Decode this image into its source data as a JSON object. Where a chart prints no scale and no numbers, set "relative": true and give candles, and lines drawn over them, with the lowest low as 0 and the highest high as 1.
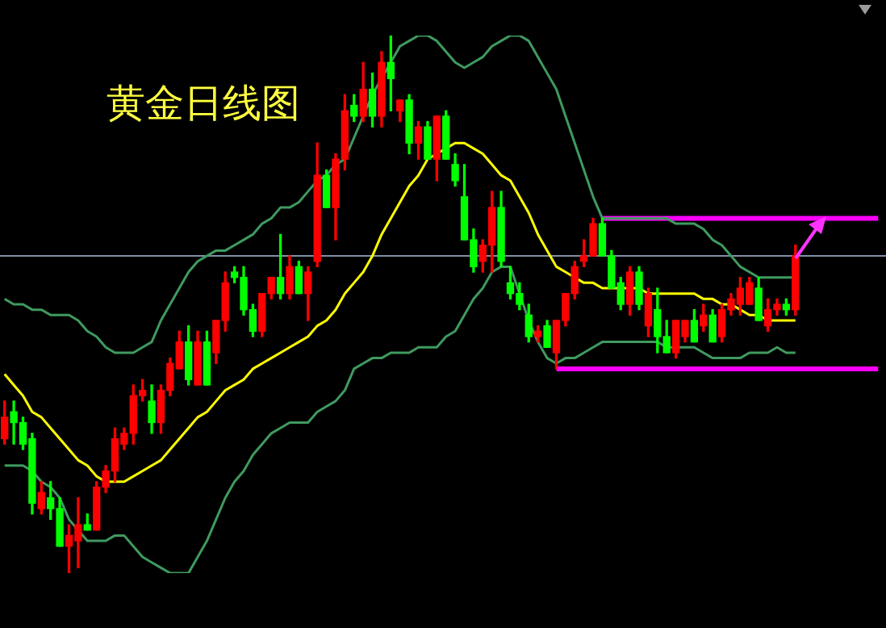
{
  "chart_data": {
    "type": "candlestick",
    "title": "黄金日线图",
    "relative": true,
    "legend": false,
    "categories": [
      null,
      null,
      null,
      null,
      null,
      null,
      null,
      null,
      null,
      null,
      null,
      null,
      null,
      null,
      null,
      null,
      null,
      null,
      null,
      null,
      null,
      null,
      null,
      null,
      null,
      null,
      null,
      null,
      null,
      null,
      null,
      null,
      null,
      null,
      null,
      null,
      null,
      null,
      null,
      null,
      null,
      null,
      null,
      null,
      null,
      null,
      null,
      null,
      null,
      null,
      null,
      null,
      null,
      null,
      null,
      null,
      null,
      null,
      null,
      null,
      null,
      null,
      null,
      null,
      null,
      null,
      null,
      null,
      null,
      null,
      null,
      null,
      null,
      null,
      null,
      null,
      null,
      null,
      null,
      null,
      null,
      null,
      null,
      null,
      null,
      null,
      null,
      null,
      null,
      null,
      null,
      null,
      null,
      null,
      null,
      null
    ],
    "ohlc": [
      [
        0.25,
        0.32,
        0.24,
        0.29
      ],
      [
        0.3,
        0.32,
        0.24,
        0.28
      ],
      [
        0.28,
        0.29,
        0.23,
        0.24
      ],
      [
        0.25,
        0.26,
        0.11,
        0.13
      ],
      [
        0.12,
        0.17,
        0.11,
        0.15
      ],
      [
        0.14,
        0.17,
        0.1,
        0.12
      ],
      [
        0.12,
        0.14,
        0.05,
        0.05
      ],
      [
        0.05,
        0.09,
        0,
        0.07
      ],
      [
        0.06,
        0.14,
        0.01,
        0.09
      ],
      [
        0.09,
        0.11,
        0.08,
        0.08
      ],
      [
        0.08,
        0.17,
        0.08,
        0.16
      ],
      [
        0.16,
        0.2,
        0.15,
        0.19
      ],
      [
        0.19,
        0.27,
        0.17,
        0.25
      ],
      [
        0.24,
        0.27,
        0.23,
        0.26
      ],
      [
        0.26,
        0.35,
        0.24,
        0.33
      ],
      [
        0.33,
        0.36,
        0.32,
        0.34
      ],
      [
        0.32,
        0.35,
        0.26,
        0.28
      ],
      [
        0.28,
        0.35,
        0.26,
        0.34
      ],
      [
        0.34,
        0.4,
        0.33,
        0.39
      ],
      [
        0.38,
        0.45,
        0.38,
        0.43
      ],
      [
        0.43,
        0.46,
        0.35,
        0.36
      ],
      [
        0.35,
        0.45,
        0.35,
        0.43
      ],
      [
        0.43,
        0.45,
        0.35,
        0.35
      ],
      [
        0.41,
        0.47,
        0.39,
        0.47
      ],
      [
        0.47,
        0.56,
        0.45,
        0.54
      ],
      [
        0.56,
        0.57,
        0.54,
        0.55
      ],
      [
        0.55,
        0.57,
        0.48,
        0.49
      ],
      [
        0.49,
        0.5,
        0.44,
        0.45
      ],
      [
        0.45,
        0.52,
        0.44,
        0.52
      ],
      [
        0.52,
        0.55,
        0.51,
        0.55
      ],
      [
        0.55,
        0.63,
        0.51,
        0.52
      ],
      [
        0.52,
        0.59,
        0.51,
        0.57
      ],
      [
        0.57,
        0.58,
        0.52,
        0.52
      ],
      [
        0.52,
        0.57,
        0.47,
        0.56
      ],
      [
        0.58,
        0.8,
        0.57,
        0.74
      ],
      [
        0.74,
        0.75,
        0.68,
        0.68
      ],
      [
        0.68,
        0.78,
        0.62,
        0.77
      ],
      [
        0.77,
        0.89,
        0.75,
        0.86
      ],
      [
        0.87,
        0.89,
        0.84,
        0.85
      ],
      [
        0.85,
        0.95,
        0.84,
        0.9
      ],
      [
        0.9,
        0.93,
        0.83,
        0.85
      ],
      [
        0.85,
        0.97,
        0.83,
        0.95
      ],
      [
        0.95,
        1,
        0.86,
        0.92
      ],
      [
        0.86,
        0.88,
        0.84,
        0.88
      ],
      [
        0.88,
        0.89,
        0.78,
        0.8
      ],
      [
        0.8,
        0.84,
        0.77,
        0.83
      ],
      [
        0.83,
        0.84,
        0.77,
        0.77
      ],
      [
        0.77,
        0.85,
        0.73,
        0.85
      ],
      [
        0.85,
        0.86,
        0.77,
        0.77
      ],
      [
        0.76,
        0.78,
        0.72,
        0.73
      ],
      [
        0.7,
        0.76,
        0.62,
        0.62
      ],
      [
        0.62,
        0.64,
        0.56,
        0.57
      ],
      [
        0.58,
        0.62,
        0.56,
        0.61
      ],
      [
        0.61,
        0.71,
        0.56,
        0.68
      ],
      [
        0.68,
        0.71,
        0.57,
        0.58
      ],
      [
        0.54,
        0.57,
        0.51,
        0.52
      ],
      [
        0.52,
        0.54,
        0.49,
        0.5
      ],
      [
        0.48,
        0.5,
        0.43,
        0.44
      ],
      [
        0.44,
        0.46,
        0.43,
        0.45
      ],
      [
        0.46,
        0.47,
        0.42,
        0.42
      ],
      [
        0.41,
        0.47,
        0.38,
        0.47
      ],
      [
        0.47,
        0.52,
        0.46,
        0.52
      ],
      [
        0.52,
        0.58,
        0.51,
        0.57
      ],
      [
        0.58,
        0.62,
        0.57,
        0.59
      ],
      [
        0.59,
        0.66,
        0.59,
        0.65
      ],
      [
        0.65,
        0.66,
        0.59,
        0.59
      ],
      [
        0.59,
        0.6,
        0.53,
        0.53
      ],
      [
        0.54,
        0.55,
        0.49,
        0.5
      ],
      [
        0.5,
        0.57,
        0.48,
        0.56
      ],
      [
        0.56,
        0.57,
        0.49,
        0.5
      ],
      [
        0.46,
        0.53,
        0.44,
        0.52
      ],
      [
        0.49,
        0.53,
        0.41,
        0.44
      ],
      [
        0.44,
        0.47,
        0.41,
        0.41
      ],
      [
        0.41,
        0.47,
        0.4,
        0.47
      ],
      [
        0.44,
        0.47,
        0.43,
        0.47
      ],
      [
        0.47,
        0.49,
        0.43,
        0.43
      ],
      [
        0.46,
        0.5,
        0.45,
        0.48
      ],
      [
        0.48,
        0.49,
        0.43,
        0.43
      ],
      [
        0.44,
        0.5,
        0.43,
        0.49
      ],
      [
        0.49,
        0.52,
        0.48,
        0.51
      ],
      [
        0.5,
        0.55,
        0.48,
        0.53
      ],
      [
        0.5,
        0.55,
        0.5,
        0.54
      ],
      [
        0.53,
        0.55,
        0.47,
        0.47
      ],
      [
        0.46,
        0.51,
        0.45,
        0.49
      ],
      [
        0.49,
        0.51,
        0.48,
        0.5
      ],
      [
        0.5,
        0.51,
        0.48,
        0.49
      ],
      [
        0.49,
        0.61,
        0.48,
        0.59
      ],
      null,
      null,
      null,
      null,
      null,
      null,
      null,
      null,
      null
    ],
    "series": [
      {
        "type": "line",
        "color": "#ffff00",
        "values": [
          0.37,
          0.35,
          0.33,
          0.3,
          0.29,
          0.27,
          0.25,
          0.23,
          0.21,
          0.2,
          0.18,
          0.17,
          0.17,
          0.17,
          0.18,
          0.19,
          0.2,
          0.21,
          0.23,
          0.25,
          0.27,
          0.29,
          0.3,
          0.32,
          0.34,
          0.35,
          0.36,
          0.38,
          0.39,
          0.4,
          0.41,
          0.42,
          0.43,
          0.44,
          0.46,
          0.47,
          0.49,
          0.52,
          0.54,
          0.56,
          0.59,
          0.63,
          0.66,
          0.69,
          0.72,
          0.74,
          0.77,
          0.78,
          0.79,
          0.8,
          0.8,
          0.79,
          0.78,
          0.76,
          0.74,
          0.73,
          0.7,
          0.67,
          0.63,
          0.6,
          0.57,
          0.56,
          0.55,
          0.54,
          0.54,
          0.53,
          0.53,
          0.53,
          0.53,
          0.53,
          0.52,
          0.52,
          0.52,
          0.52,
          0.52,
          0.52,
          0.51,
          0.51,
          0.5,
          0.5,
          0.49,
          0.48,
          0.48,
          0.47,
          0.47,
          0.47,
          0.47,
          null,
          null,
          null,
          null,
          null,
          null,
          null,
          null,
          null
        ]
      },
      {
        "type": "line",
        "color": "#3f9a5f",
        "values": [
          0.51,
          0.5,
          0.5,
          0.49,
          0.49,
          0.48,
          0.48,
          0.48,
          0.47,
          0.45,
          0.44,
          0.42,
          0.41,
          0.41,
          0.41,
          0.42,
          0.43,
          0.47,
          0.5,
          0.53,
          0.56,
          0.58,
          0.59,
          0.6,
          0.6,
          0.61,
          0.62,
          0.63,
          0.65,
          0.66,
          0.68,
          0.68,
          0.69,
          0.71,
          0.73,
          0.74,
          0.76,
          0.77,
          0.81,
          0.85,
          0.89,
          0.92,
          0.95,
          0.98,
          0.99,
          1.0,
          1.0,
          0.99,
          0.97,
          0.95,
          0.94,
          0.95,
          0.96,
          0.98,
          0.99,
          1.0,
          1.0,
          0.99,
          0.96,
          0.93,
          0.9,
          0.85,
          0.8,
          0.75,
          0.7,
          0.66,
          0.66,
          0.66,
          0.66,
          0.66,
          0.66,
          0.66,
          0.66,
          0.65,
          0.65,
          0.65,
          0.64,
          0.62,
          0.61,
          0.59,
          0.57,
          0.56,
          0.55,
          0.55,
          0.55,
          0.55,
          0.55,
          null,
          null,
          null,
          null,
          null,
          null,
          null,
          null,
          null
        ]
      },
      {
        "type": "line",
        "color": "#3f9a5f",
        "values": [
          0.2,
          0.2,
          0.2,
          0.19,
          0.17,
          0.16,
          0.14,
          0.1,
          0.08,
          0.06,
          0.06,
          0.06,
          0.07,
          0.07,
          0.05,
          0.03,
          0.02,
          0.01,
          0,
          0,
          0,
          0.03,
          0.06,
          0.1,
          0.14,
          0.17,
          0.19,
          0.22,
          0.24,
          0.26,
          0.27,
          0.28,
          0.28,
          0.28,
          0.3,
          0.31,
          0.32,
          0.34,
          0.38,
          0.39,
          0.4,
          0.4,
          0.41,
          0.41,
          0.41,
          0.42,
          0.42,
          0.42,
          0.44,
          0.45,
          0.48,
          0.51,
          0.53,
          0.56,
          0.57,
          0.57,
          0.52,
          0.47,
          0.43,
          0.4,
          0.39,
          0.4,
          0.4,
          0.41,
          0.42,
          0.43,
          0.43,
          0.43,
          0.43,
          0.43,
          0.43,
          0.43,
          0.42,
          0.42,
          0.42,
          0.42,
          0.41,
          0.4,
          0.4,
          0.4,
          0.4,
          0.41,
          0.41,
          0.41,
          0.42,
          0.41,
          0.41,
          null,
          null,
          null,
          null,
          null,
          null,
          null,
          null,
          null
        ]
      },
      {
        "type": "line",
        "color": "#ff00ff",
        "values": [
          null,
          null,
          null,
          null,
          null,
          null,
          null,
          null,
          null,
          null,
          null,
          null,
          null,
          null,
          null,
          null,
          null,
          null,
          null,
          null,
          null,
          null,
          null,
          null,
          null,
          null,
          null,
          null,
          null,
          null,
          null,
          null,
          null,
          null,
          null,
          null,
          null,
          null,
          null,
          null,
          null,
          null,
          null,
          null,
          null,
          null,
          null,
          null,
          null,
          null,
          null,
          null,
          null,
          null,
          null,
          null,
          null,
          null,
          null,
          null,
          null,
          null,
          null,
          null,
          null,
          0.66,
          0.66,
          0.66,
          0.66,
          0.66,
          0.66,
          0.66,
          0.66,
          0.66,
          0.66,
          0.66,
          0.66,
          0.66,
          0.66,
          0.66,
          0.66,
          0.66,
          0.66,
          0.66,
          0.66,
          0.66,
          0.66,
          0.66,
          0.66,
          0.66,
          0.66,
          0.66,
          0.66,
          0.66,
          0.66,
          0.66
        ]
      },
      {
        "type": "line",
        "color": "#ff00ff",
        "values": [
          null,
          null,
          null,
          null,
          null,
          null,
          null,
          null,
          null,
          null,
          null,
          null,
          null,
          null,
          null,
          null,
          null,
          null,
          null,
          null,
          null,
          null,
          null,
          null,
          null,
          null,
          null,
          null,
          null,
          null,
          null,
          null,
          null,
          null,
          null,
          null,
          null,
          null,
          null,
          null,
          null,
          null,
          null,
          null,
          null,
          null,
          null,
          null,
          null,
          null,
          null,
          null,
          null,
          null,
          null,
          null,
          null,
          null,
          null,
          null,
          0.38,
          0.38,
          0.38,
          0.38,
          0.38,
          0.38,
          0.38,
          0.38,
          0.38,
          0.38,
          0.38,
          0.38,
          0.38,
          0.38,
          0.38,
          0.38,
          0.38,
          0.38,
          0.38,
          0.38,
          0.38,
          0.38,
          0.38,
          0.38,
          0.38,
          0.38,
          0.38,
          0.38,
          0.38,
          0.38,
          0.38,
          0.38,
          0.38,
          0.38,
          0.38,
          0.38
        ]
      }
    ],
    "ref_lines": [
      {
        "axis": "y",
        "value": 0.59,
        "color": "#7f8fa6"
      }
    ]
  }
}
